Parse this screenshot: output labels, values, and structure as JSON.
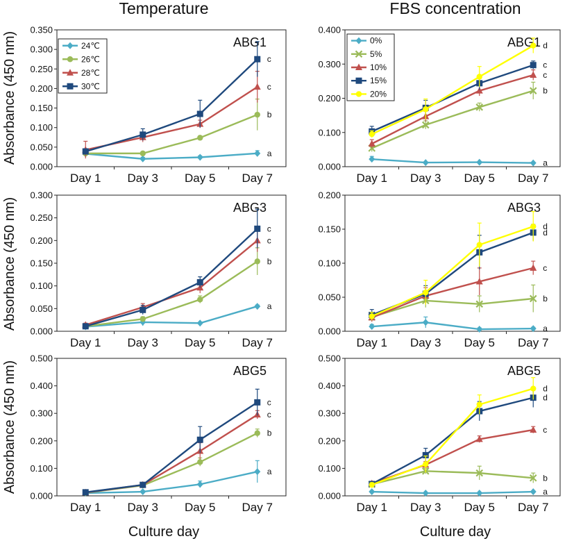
{
  "titles": {
    "left": "Temperature",
    "right": "FBS concentration",
    "xlabel": "Culture day",
    "ylabel": "Absorbance (450 nm)"
  },
  "chart_data": [
    {
      "type": "line",
      "panel": "ABG1",
      "column": "Temperature",
      "categories": [
        "Day 1",
        "Day 3",
        "Day 5",
        "Day 7"
      ],
      "ylim": [
        0,
        0.35
      ],
      "yticks": [
        "0.000",
        "0.050",
        "0.100",
        "0.150",
        "0.200",
        "0.250",
        "0.300",
        "0.350"
      ],
      "legend": "top-left",
      "series": [
        {
          "name": "24℃",
          "color": "#4bacc6",
          "marker": "diamond",
          "values": [
            0.033,
            0.02,
            0.024,
            0.034
          ],
          "errors": [
            0.005,
            0.004,
            0.004,
            0.007
          ],
          "letter": "a"
        },
        {
          "name": "26℃",
          "color": "#9bbb59",
          "marker": "circle",
          "values": [
            0.034,
            0.034,
            0.074,
            0.133
          ],
          "errors": [
            0.005,
            0.004,
            0.004,
            0.04
          ],
          "letter": "b"
        },
        {
          "name": "28℃",
          "color": "#c0504d",
          "marker": "triangle",
          "values": [
            0.043,
            0.075,
            0.109,
            0.204
          ],
          "errors": [
            0.022,
            0.012,
            0.01,
            0.04
          ],
          "letter": "c"
        },
        {
          "name": "30℃",
          "color": "#1f497d",
          "marker": "square",
          "values": [
            0.039,
            0.082,
            0.135,
            0.275
          ],
          "errors": [
            0.007,
            0.015,
            0.035,
            0.045
          ],
          "letter": "c"
        }
      ]
    },
    {
      "type": "line",
      "panel": "ABG1",
      "column": "FBS concentration",
      "categories": [
        "Day 1",
        "Day 3",
        "Day 5",
        "Day 7"
      ],
      "ylim": [
        0,
        0.4
      ],
      "yticks": [
        "0.000",
        "0.100",
        "0.200",
        "0.300",
        "0.400"
      ],
      "legend": "top-left",
      "series": [
        {
          "name": "0%",
          "color": "#4bacc6",
          "marker": "diamond",
          "values": [
            0.022,
            0.012,
            0.013,
            0.011
          ],
          "errors": [
            0.008,
            0.002,
            0.002,
            0.002
          ],
          "letter": "a"
        },
        {
          "name": "5%",
          "color": "#9bbb59",
          "marker": "x",
          "values": [
            0.054,
            0.122,
            0.174,
            0.222
          ],
          "errors": [
            0.01,
            0.012,
            0.012,
            0.025
          ],
          "letter": "b"
        },
        {
          "name": "10%",
          "color": "#c0504d",
          "marker": "triangle",
          "values": [
            0.067,
            0.147,
            0.222,
            0.268
          ],
          "errors": [
            0.012,
            0.015,
            0.015,
            0.015
          ],
          "letter": "c"
        },
        {
          "name": "15%",
          "color": "#1f497d",
          "marker": "square",
          "values": [
            0.103,
            0.172,
            0.244,
            0.297
          ],
          "errors": [
            0.015,
            0.022,
            0.02,
            0.012
          ],
          "letter": "c"
        },
        {
          "name": "20%",
          "color": "#ffff00",
          "marker": "circle",
          "values": [
            0.095,
            0.168,
            0.263,
            0.354
          ],
          "errors": [
            0.01,
            0.03,
            0.03,
            0.022
          ],
          "letter": "d"
        }
      ]
    },
    {
      "type": "line",
      "panel": "ABG3",
      "column": "Temperature",
      "categories": [
        "Day 1",
        "Day 3",
        "Day 5",
        "Day 7"
      ],
      "ylim": [
        0,
        0.3
      ],
      "yticks": [
        "0.000",
        "0.050",
        "0.100",
        "0.150",
        "0.200",
        "0.250",
        "0.300"
      ],
      "series": [
        {
          "name": "24℃",
          "color": "#4bacc6",
          "marker": "diamond",
          "values": [
            0.01,
            0.02,
            0.018,
            0.055
          ],
          "errors": [
            0.003,
            0.008,
            0.002,
            0.003
          ],
          "letter": "a"
        },
        {
          "name": "26℃",
          "color": "#9bbb59",
          "marker": "circle",
          "values": [
            0.011,
            0.027,
            0.07,
            0.154
          ],
          "errors": [
            0.003,
            0.005,
            0.008,
            0.03
          ],
          "letter": "b"
        },
        {
          "name": "28℃",
          "color": "#c0504d",
          "marker": "triangle",
          "values": [
            0.014,
            0.053,
            0.096,
            0.2
          ],
          "errors": [
            0.004,
            0.008,
            0.012,
            0.025
          ],
          "letter": "c"
        },
        {
          "name": "30℃",
          "color": "#1f497d",
          "marker": "square",
          "values": [
            0.011,
            0.047,
            0.108,
            0.226
          ],
          "errors": [
            0.003,
            0.01,
            0.012,
            0.043
          ],
          "letter": "c"
        }
      ]
    },
    {
      "type": "line",
      "panel": "ABG3",
      "column": "FBS concentration",
      "categories": [
        "Day 1",
        "Day 3",
        "Day 5",
        "Day 7"
      ],
      "ylim": [
        0,
        0.2
      ],
      "yticks": [
        "0.000",
        "0.050",
        "0.100",
        "0.150",
        "0.200"
      ],
      "series": [
        {
          "name": "0%",
          "color": "#4bacc6",
          "marker": "diamond",
          "values": [
            0.007,
            0.013,
            0.003,
            0.004
          ],
          "errors": [
            0.003,
            0.008,
            0.002,
            0.002
          ],
          "letter": "a"
        },
        {
          "name": "5%",
          "color": "#9bbb59",
          "marker": "x",
          "values": [
            0.021,
            0.045,
            0.04,
            0.048
          ],
          "errors": [
            0.006,
            0.01,
            0.012,
            0.02
          ],
          "letter": "b"
        },
        {
          "name": "10%",
          "color": "#c0504d",
          "marker": "triangle",
          "values": [
            0.02,
            0.052,
            0.073,
            0.093
          ],
          "errors": [
            0.006,
            0.012,
            0.02,
            0.01
          ],
          "letter": "c"
        },
        {
          "name": "15%",
          "color": "#1f497d",
          "marker": "square",
          "values": [
            0.024,
            0.055,
            0.116,
            0.145
          ],
          "errors": [
            0.008,
            0.012,
            0.025,
            0.012
          ],
          "letter": "d"
        },
        {
          "name": "20%",
          "color": "#ffff00",
          "marker": "circle",
          "values": [
            0.022,
            0.057,
            0.127,
            0.154
          ],
          "errors": [
            0.006,
            0.018,
            0.032,
            0.022
          ],
          "letter": "d"
        }
      ]
    },
    {
      "type": "line",
      "panel": "ABG5",
      "column": "Temperature",
      "categories": [
        "Day 1",
        "Day 3",
        "Day 5",
        "Day 7"
      ],
      "ylim": [
        0,
        0.5
      ],
      "yticks": [
        "0.000",
        "0.100",
        "0.200",
        "0.300",
        "0.400",
        "0.500"
      ],
      "series": [
        {
          "name": "24℃",
          "color": "#4bacc6",
          "marker": "diamond",
          "values": [
            0.01,
            0.015,
            0.042,
            0.088
          ],
          "errors": [
            0.003,
            0.004,
            0.012,
            0.04
          ],
          "letter": "a"
        },
        {
          "name": "26℃",
          "color": "#9bbb59",
          "marker": "circle",
          "values": [
            0.011,
            0.038,
            0.123,
            0.228
          ],
          "errors": [
            0.003,
            0.005,
            0.015,
            0.015
          ],
          "letter": "b"
        },
        {
          "name": "28℃",
          "color": "#c0504d",
          "marker": "triangle",
          "values": [
            0.012,
            0.04,
            0.163,
            0.295
          ],
          "errors": [
            0.003,
            0.006,
            0.03,
            0.015
          ],
          "letter": "c"
        },
        {
          "name": "30℃",
          "color": "#1f497d",
          "marker": "square",
          "values": [
            0.013,
            0.04,
            0.204,
            0.34
          ],
          "errors": [
            0.003,
            0.006,
            0.048,
            0.048
          ],
          "letter": "c"
        }
      ]
    },
    {
      "type": "line",
      "panel": "ABG5",
      "column": "FBS concentration",
      "categories": [
        "Day 1",
        "Day 3",
        "Day 5",
        "Day 7"
      ],
      "ylim": [
        0,
        0.5
      ],
      "yticks": [
        "0.000",
        "0.100",
        "0.200",
        "0.300",
        "0.400",
        "0.500"
      ],
      "series": [
        {
          "name": "0%",
          "color": "#4bacc6",
          "marker": "diamond",
          "values": [
            0.015,
            0.01,
            0.01,
            0.015
          ],
          "errors": [
            0.003,
            0.002,
            0.002,
            0.003
          ],
          "letter": "a"
        },
        {
          "name": "5%",
          "color": "#9bbb59",
          "marker": "x",
          "values": [
            0.042,
            0.09,
            0.083,
            0.065
          ],
          "errors": [
            0.008,
            0.01,
            0.025,
            0.018
          ],
          "letter": "b"
        },
        {
          "name": "10%",
          "color": "#c0504d",
          "marker": "triangle",
          "values": [
            0.045,
            0.113,
            0.206,
            0.24
          ],
          "errors": [
            0.008,
            0.012,
            0.012,
            0.012
          ],
          "letter": "c"
        },
        {
          "name": "15%",
          "color": "#1f497d",
          "marker": "square",
          "values": [
            0.043,
            0.148,
            0.308,
            0.357
          ],
          "errors": [
            0.008,
            0.025,
            0.035,
            0.035
          ],
          "letter": "d"
        },
        {
          "name": "20%",
          "color": "#ffff00",
          "marker": "circle",
          "values": [
            0.04,
            0.115,
            0.332,
            0.39
          ],
          "errors": [
            0.008,
            0.03,
            0.035,
            0.04
          ],
          "letter": "d"
        }
      ]
    }
  ]
}
